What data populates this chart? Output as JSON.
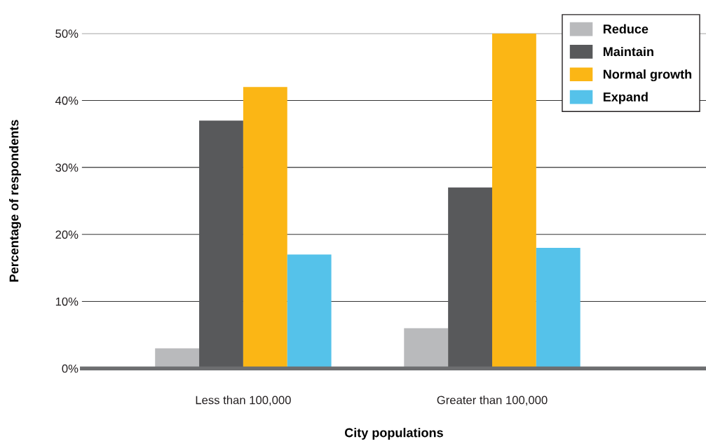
{
  "chart_data": {
    "type": "bar",
    "xlabel": "City populations",
    "ylabel": "Percentage of respondents",
    "categories": [
      "Less than 100,000",
      "Greater than 100,000"
    ],
    "series": [
      {
        "name": "Reduce",
        "color": "#b9babc",
        "values": [
          3,
          6
        ]
      },
      {
        "name": "Maintain",
        "color": "#58595b",
        "values": [
          37,
          27
        ]
      },
      {
        "name": "Normal growth",
        "color": "#fbb615",
        "values": [
          42,
          50
        ]
      },
      {
        "name": "Expand",
        "color": "#55c2ea",
        "values": [
          17,
          18
        ]
      }
    ],
    "ylim": [
      0,
      50
    ],
    "yticks": [
      {
        "value": 0,
        "label": "0%"
      },
      {
        "value": 10,
        "label": "10%"
      },
      {
        "value": 20,
        "label": "20%"
      },
      {
        "value": 30,
        "label": "30%"
      },
      {
        "value": 40,
        "label": "40%"
      },
      {
        "value": 50,
        "label": "50%"
      }
    ],
    "grid": "y",
    "legend": "top right"
  }
}
